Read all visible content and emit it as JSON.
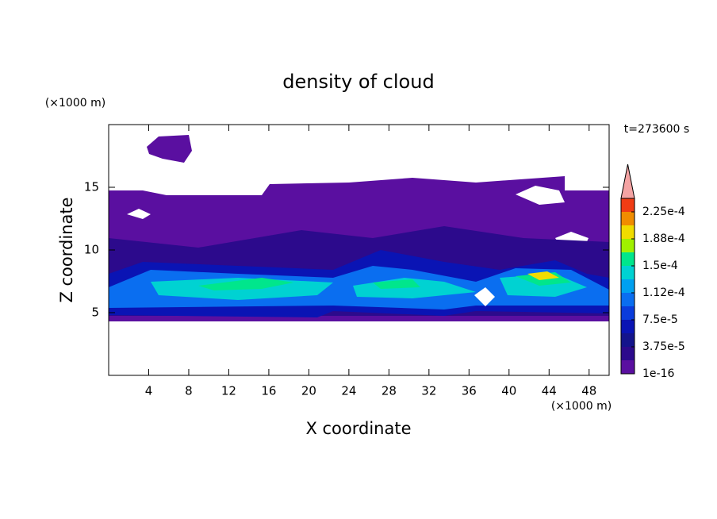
{
  "chart_data": {
    "type": "contour",
    "title": "density of cloud",
    "x_label": "X coordinate",
    "y_label": "Z coordinate",
    "x_unit": "(×1000 m)",
    "y_unit": "(×1000 m)",
    "annotation": "t=273600 s",
    "xlim": [
      0,
      50
    ],
    "xticks": [
      4,
      8,
      12,
      16,
      20,
      24,
      28,
      32,
      36,
      40,
      44,
      48
    ],
    "ylim": [
      0,
      20
    ],
    "yticks": [
      5,
      10,
      15
    ],
    "colorbar": {
      "levels": [
        1e-16,
        1.875e-05,
        3.75e-05,
        5.625e-05,
        7.5e-05,
        9.375e-05,
        0.0001125,
        0.00013125,
        0.00015,
        0.00016875,
        0.0001875,
        0.00020625,
        0.000225,
        0.00024375
      ],
      "colors": [
        "#5a0fa0",
        "#2c0a8c",
        "#14148c",
        "#0a14b4",
        "#0a3cdc",
        "#0a6ef0",
        "#00a0f0",
        "#00d2d2",
        "#00e68c",
        "#a0f000",
        "#f0dc00",
        "#f08c00",
        "#f03c14"
      ],
      "extend_color": "#f4a3a3",
      "ticks": [
        {
          "value": 1e-16,
          "label": "1e-16"
        },
        {
          "value": 3.75e-05,
          "label": "3.75e-5"
        },
        {
          "value": 7.5e-05,
          "label": "7.5e-5"
        },
        {
          "value": 0.0001125,
          "label": "1.12e-4"
        },
        {
          "value": 0.00015,
          "label": "1.5e-4"
        },
        {
          "value": 0.0001875,
          "label": "1.88e-4"
        },
        {
          "value": 0.000225,
          "label": "2.25e-4"
        }
      ]
    }
  }
}
